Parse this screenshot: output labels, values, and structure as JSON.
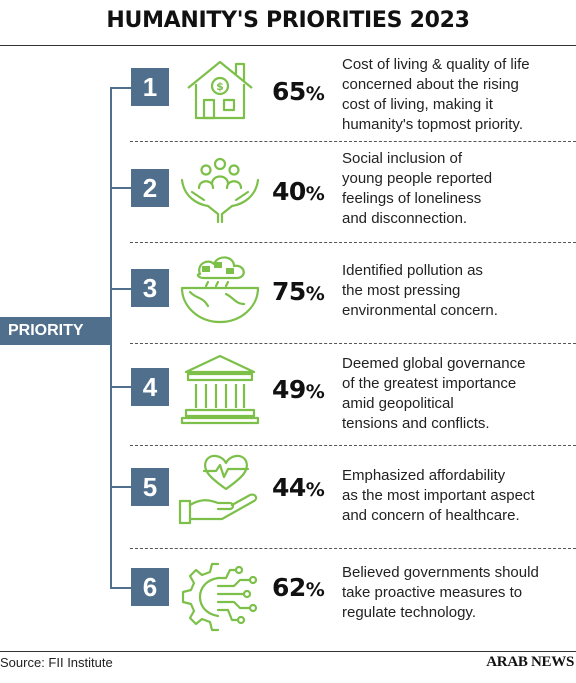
{
  "title": "HUMANITY'S PRIORITIES 2023",
  "priority_label": "PRIORITY",
  "items": [
    {
      "number": "1",
      "percent": "65",
      "percent_sign": "%",
      "icon": "house-dollar-icon",
      "lines": [
        "Cost of living & quality of life",
        "concerned about the rising",
        "cost of living, making it",
        "humanity's topmost priority."
      ]
    },
    {
      "number": "2",
      "percent": "40",
      "percent_sign": "%",
      "icon": "hands-people-icon",
      "lines": [
        "Social inclusion of",
        "young people reported",
        "feelings of loneliness",
        "and disconnection."
      ]
    },
    {
      "number": "3",
      "percent": "75",
      "percent_sign": "%",
      "icon": "polluted-earth-icon",
      "lines": [
        "Identified pollution as",
        "the most pressing",
        "environmental concern."
      ]
    },
    {
      "number": "4",
      "percent": "49",
      "percent_sign": "%",
      "icon": "government-building-icon",
      "lines": [
        "Deemed global governance",
        "of the greatest importance",
        "amid geopolitical",
        "tensions and conflicts."
      ]
    },
    {
      "number": "5",
      "percent": "44",
      "percent_sign": "%",
      "icon": "heart-hand-icon",
      "lines": [
        "Emphasized affordability",
        "as the most important aspect",
        "and concern of healthcare."
      ]
    },
    {
      "number": "6",
      "percent": "62",
      "percent_sign": "%",
      "icon": "tech-gear-icon",
      "lines": [
        "Believed governments should",
        "take proactive measures to",
        "regulate technology."
      ]
    }
  ],
  "source": "Source: FII Institute",
  "brand": "ARAB NEWS",
  "colors": {
    "accent": "#4f6f8c",
    "icon_green": "#7cc04a"
  }
}
